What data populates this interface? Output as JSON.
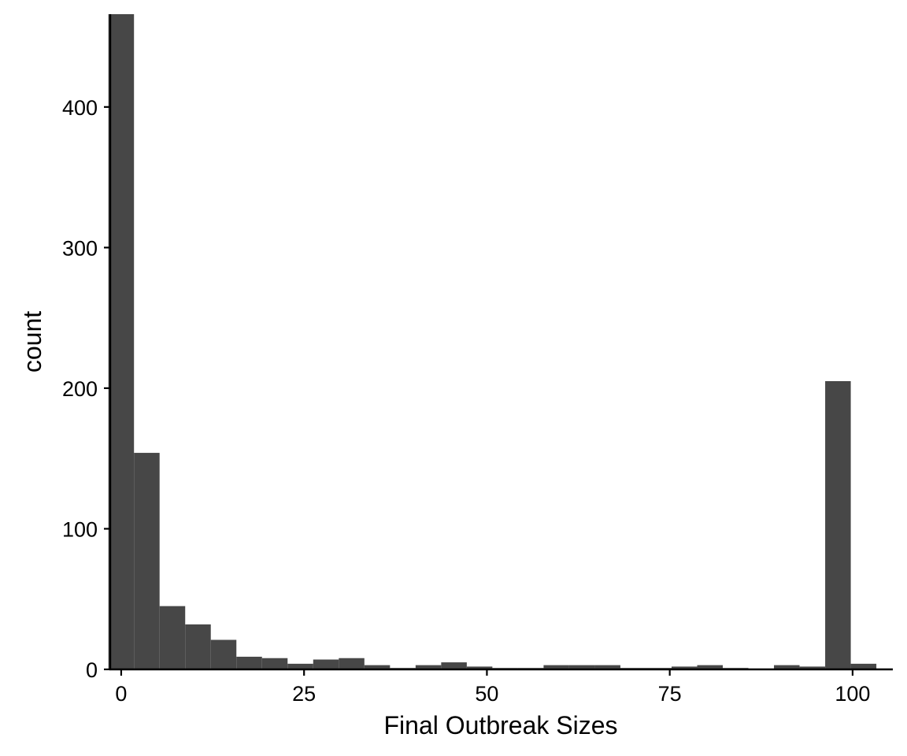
{
  "chart_data": {
    "type": "bar",
    "subtype": "histogram",
    "xlabel": "Final Outbreak Sizes",
    "ylabel": "count",
    "x_ticks": [
      0,
      25,
      50,
      75,
      100
    ],
    "y_ticks": [
      0,
      100,
      200,
      300,
      400
    ],
    "xlim": [
      -1.5,
      105.5
    ],
    "ylim": [
      0,
      466
    ],
    "bin_width": 3.5,
    "bar_color": "#474747",
    "grid": false,
    "bins": [
      {
        "x": 0,
        "count": 466
      },
      {
        "x": 3.5,
        "count": 154
      },
      {
        "x": 7,
        "count": 45
      },
      {
        "x": 10.5,
        "count": 32
      },
      {
        "x": 14,
        "count": 21
      },
      {
        "x": 17.5,
        "count": 9
      },
      {
        "x": 21,
        "count": 8
      },
      {
        "x": 24.5,
        "count": 4
      },
      {
        "x": 28,
        "count": 7
      },
      {
        "x": 31.5,
        "count": 8
      },
      {
        "x": 35,
        "count": 3
      },
      {
        "x": 38.5,
        "count": 1
      },
      {
        "x": 42,
        "count": 3
      },
      {
        "x": 45.5,
        "count": 5
      },
      {
        "x": 49,
        "count": 2
      },
      {
        "x": 52.5,
        "count": 1
      },
      {
        "x": 56,
        "count": 1
      },
      {
        "x": 59.5,
        "count": 3
      },
      {
        "x": 63,
        "count": 3
      },
      {
        "x": 66.5,
        "count": 3
      },
      {
        "x": 70,
        "count": 1
      },
      {
        "x": 73.5,
        "count": 1
      },
      {
        "x": 77,
        "count": 2
      },
      {
        "x": 80.5,
        "count": 3
      },
      {
        "x": 84,
        "count": 1
      },
      {
        "x": 87.5,
        "count": 0
      },
      {
        "x": 91,
        "count": 3
      },
      {
        "x": 94.5,
        "count": 2
      },
      {
        "x": 98,
        "count": 205
      },
      {
        "x": 101.5,
        "count": 4
      }
    ]
  }
}
